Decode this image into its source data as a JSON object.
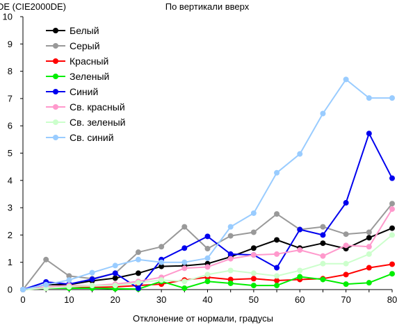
{
  "chart_data": {
    "type": "line",
    "title": "По вертикали вверх",
    "ylabel": "DE (CIE2000DE)",
    "xlabel": "Отклонение от нормали, градусы",
    "x": [
      0,
      5,
      10,
      15,
      20,
      25,
      30,
      35,
      40,
      45,
      50,
      55,
      60,
      65,
      70,
      75,
      80
    ],
    "xlim": [
      0,
      80
    ],
    "ylim": [
      0,
      10
    ],
    "xticks": [
      0,
      10,
      20,
      30,
      40,
      50,
      60,
      70,
      80
    ],
    "yticks": [
      0,
      1,
      2,
      3,
      4,
      5,
      6,
      7,
      8,
      9,
      10
    ],
    "grid": false,
    "legend_position": "top-left",
    "series": [
      {
        "name": "Белый",
        "color": "#000000",
        "values": [
          0,
          0.18,
          0.18,
          0.32,
          0.42,
          0.6,
          0.85,
          0.87,
          0.95,
          1.2,
          1.52,
          1.82,
          1.52,
          1.7,
          1.5,
          1.9,
          2.25
        ]
      },
      {
        "name": "Серый",
        "color": "#999999",
        "values": [
          0,
          1.1,
          0.5,
          0.4,
          0.6,
          1.37,
          1.57,
          2.3,
          1.5,
          1.97,
          2.1,
          2.77,
          2.2,
          2.3,
          2.03,
          2.1,
          3.15
        ]
      },
      {
        "name": "Красный",
        "color": "#ff0000",
        "values": [
          0,
          0.05,
          0.08,
          0.08,
          0.1,
          0.15,
          0.2,
          0.35,
          0.45,
          0.37,
          0.4,
          0.33,
          0.37,
          0.4,
          0.55,
          0.8,
          0.93
        ]
      },
      {
        "name": "Зеленый",
        "color": "#00ee00",
        "values": [
          0,
          0.05,
          0.05,
          0.05,
          0.03,
          0.02,
          0.3,
          0.05,
          0.3,
          0.23,
          0.15,
          0.15,
          0.47,
          0.37,
          0.2,
          0.25,
          0.58
        ]
      },
      {
        "name": "Синий",
        "color": "#0000ee",
        "values": [
          0,
          0.28,
          0.2,
          0.38,
          0.6,
          0.05,
          1.1,
          1.52,
          1.95,
          1.3,
          1.27,
          0.8,
          2.2,
          2.0,
          3.18,
          5.72,
          4.08
        ]
      },
      {
        "name": "Св. красный",
        "color": "#ff99cc",
        "values": [
          0,
          0.1,
          0.15,
          0.15,
          0.2,
          0.3,
          0.45,
          0.78,
          0.83,
          1.13,
          1.27,
          1.3,
          1.45,
          1.23,
          1.62,
          1.57,
          2.95
        ]
      },
      {
        "name": "Св. зеленый",
        "color": "#ccffcc",
        "values": [
          0,
          0.05,
          0.1,
          0.15,
          0.15,
          0.25,
          0.35,
          0.3,
          0.55,
          0.7,
          0.6,
          0.5,
          0.7,
          0.95,
          0.95,
          1.3,
          2.0
        ]
      },
      {
        "name": "Св. синий",
        "color": "#99ccff",
        "values": [
          0,
          0.18,
          0.35,
          0.62,
          0.88,
          1.1,
          1.0,
          1.0,
          1.15,
          2.3,
          2.8,
          4.28,
          4.97,
          6.45,
          7.7,
          7.02,
          7.02
        ]
      }
    ]
  }
}
